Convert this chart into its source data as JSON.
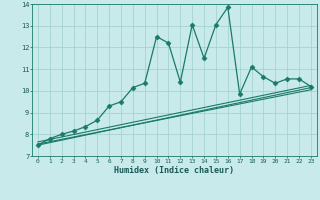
{
  "xlabel": "Humidex (Indice chaleur)",
  "bg_color": "#c8eaea",
  "grid_color": "#a0cdcd",
  "line_color": "#1a7a6a",
  "xlim": [
    -0.5,
    23.5
  ],
  "ylim": [
    7,
    14
  ],
  "xticks": [
    0,
    1,
    2,
    3,
    4,
    5,
    6,
    7,
    8,
    9,
    10,
    11,
    12,
    13,
    14,
    15,
    16,
    17,
    18,
    19,
    20,
    21,
    22,
    23
  ],
  "yticks": [
    7,
    8,
    9,
    10,
    11,
    12,
    13,
    14
  ],
  "series": [
    {
      "x": [
        0,
        1,
        2,
        3,
        4,
        5,
        6,
        7,
        8,
        9,
        10,
        11,
        12,
        13,
        14,
        15,
        16,
        17,
        18,
        19,
        20,
        21,
        22,
        23
      ],
      "y": [
        7.5,
        7.8,
        8.0,
        8.15,
        8.35,
        8.65,
        9.3,
        9.5,
        10.15,
        10.35,
        12.5,
        12.2,
        10.4,
        13.05,
        11.5,
        13.05,
        13.85,
        9.85,
        11.1,
        10.65,
        10.35,
        10.55,
        10.55,
        10.2
      ],
      "marker": "D",
      "markersize": 2.5,
      "linewidth": 0.9,
      "has_marker": true
    },
    {
      "x": [
        0,
        23
      ],
      "y": [
        7.5,
        10.15
      ],
      "linewidth": 0.8,
      "has_marker": false
    },
    {
      "x": [
        0,
        23
      ],
      "y": [
        7.55,
        10.05
      ],
      "linewidth": 0.8,
      "has_marker": false
    },
    {
      "x": [
        0,
        23
      ],
      "y": [
        7.65,
        10.25
      ],
      "linewidth": 0.8,
      "has_marker": false
    }
  ]
}
